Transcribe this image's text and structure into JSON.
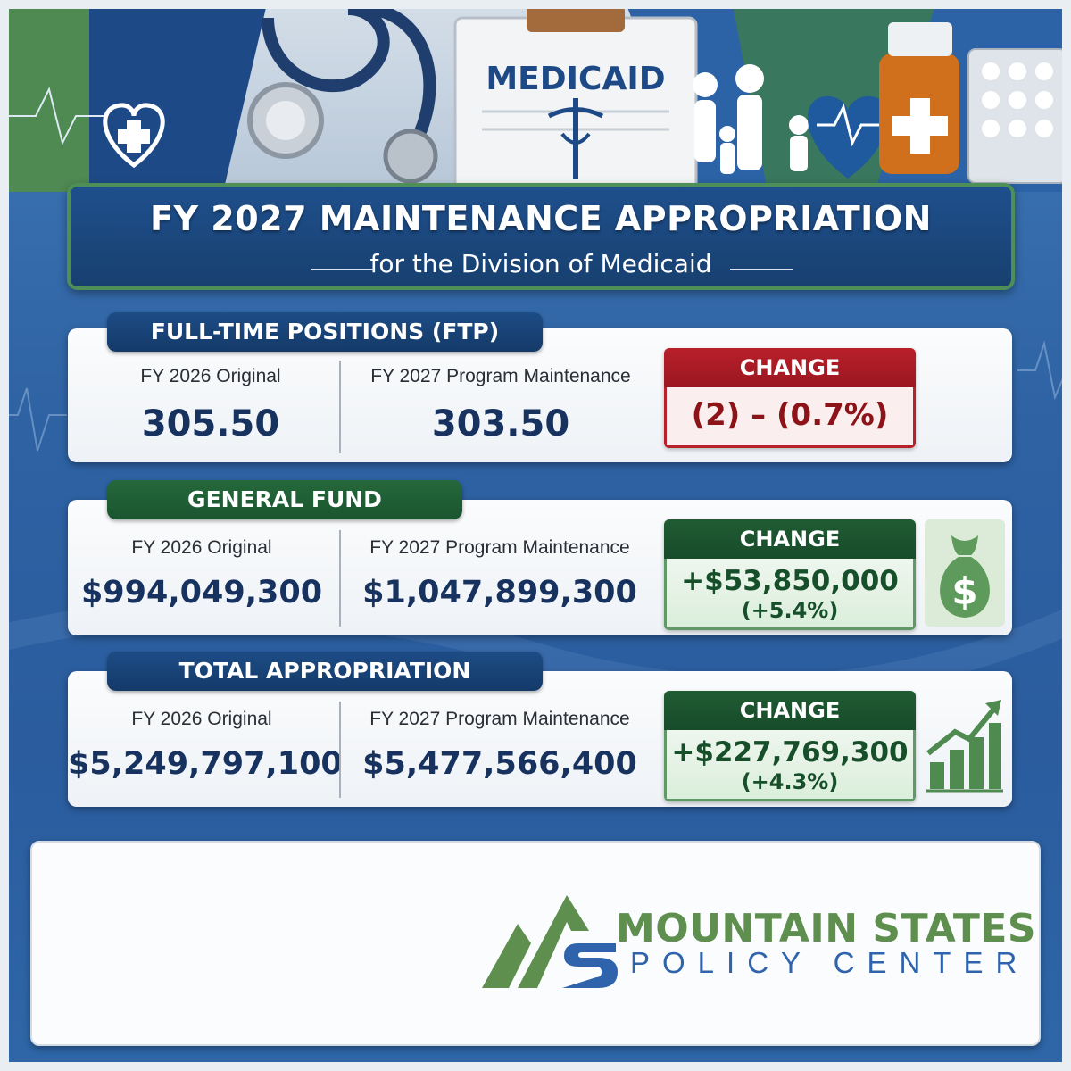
{
  "header": {
    "medicaid_label": "MEDICAID",
    "title": "FY 2027 MAINTENANCE APPROPRIATION",
    "subtitle": "for the Division of Medicaid"
  },
  "sections": {
    "ftp": {
      "tab": "FULL-TIME POSITIONS (FTP)",
      "original_label": "FY 2026 Original",
      "original_value": "305.50",
      "maintenance_label": "FY 2027 Program Maintenance",
      "maintenance_value": "303.50",
      "change_label": "CHANGE",
      "change_value": "(2) – (0.7%)",
      "change_color": "#b8202a"
    },
    "general_fund": {
      "tab": "GENERAL FUND",
      "original_label": "FY 2026 Original",
      "original_value": "$994,049,300",
      "maintenance_label": "FY 2027 Program Maintenance",
      "maintenance_value": "$1,047,899,300",
      "change_label": "CHANGE",
      "change_value": "+$53,850,000",
      "change_percent": "(+5.4%)",
      "change_color": "#1f5c33",
      "icon": "money-bag-icon"
    },
    "total": {
      "tab": "TOTAL APPROPRIATION",
      "original_label": "FY 2026 Original",
      "original_value": "$5,249,797,100",
      "maintenance_label": "FY 2027 Program Maintenance",
      "maintenance_value": "$5,477,566,400",
      "change_label": "CHANGE",
      "change_value": "+$227,769,300",
      "change_percent": "(+4.3%)",
      "change_color": "#1f5c33",
      "icon": "growth-chart-icon"
    }
  },
  "footer": {
    "logo_line1": "MOUNTAIN STATES",
    "logo_line2": "POLICY CENTER",
    "logo_colors": {
      "green": "#5e8f4f",
      "blue": "#2f63ac"
    }
  },
  "colors": {
    "background_blue": "#2e62a3",
    "banner_navy": "#17406f",
    "accent_green": "#4d8f56"
  }
}
